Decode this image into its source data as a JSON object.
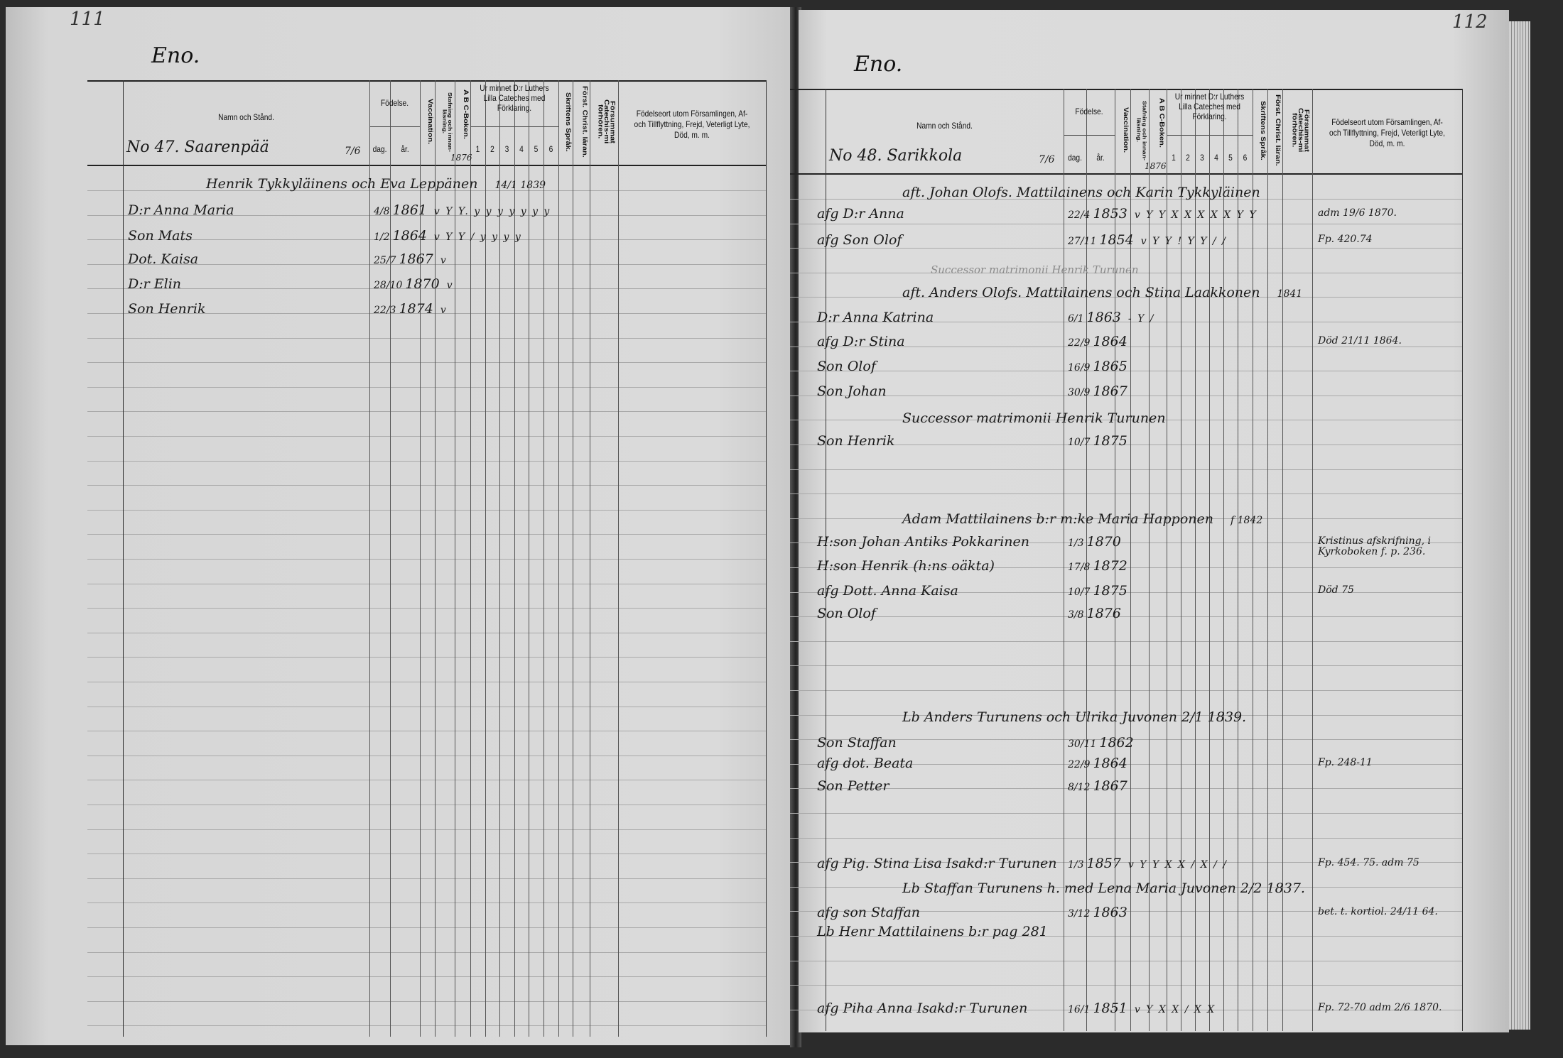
{
  "header": {
    "namn": "Namn och Stånd.",
    "fodelse": "Födelse.",
    "dag": "dag.",
    "ar": "år.",
    "vaccination": "Vaccination.",
    "stavning": "Stafning och innan-läsning.",
    "abc": "A B C-Boken.",
    "catechism": "Ur minnet D:r Luthers Lilla Cateches med Förklaring.",
    "catechism_cols": [
      "1",
      "2",
      "3",
      "4",
      "5",
      "6"
    ],
    "skriftens": "Skriftens Språk.",
    "forst": "Först. Christ. läran.",
    "forsummat": "Försummat Catechis-mi förhören.",
    "fodelseort": "Födelseort utom Församlingen, Af- och Tillflyttning, Frejd, Veterligt Lyte, Död, m. m."
  },
  "left_page": {
    "page_number": "111",
    "parish": "Eno.",
    "farm": "No 47. Saarenpää",
    "farm_mark": "7/6",
    "abc_mark": "1876",
    "entries": [
      {
        "name": "Henrik Tykkyläinens och Eva Leppänen",
        "day": "",
        "year": "",
        "marks": "",
        "note": "14/1 1839",
        "kind": "head"
      },
      {
        "name": "D:r Anna Maria",
        "day": "4/8",
        "year": "1861",
        "marks": "v Y Y.   y y y y y y y",
        "note": ""
      },
      {
        "name": "Son Mats",
        "day": "1/2",
        "year": "1864",
        "marks": "v Y Y / y y y y",
        "note": ""
      },
      {
        "name": "Dot. Kaisa",
        "day": "25/7",
        "year": "1867",
        "marks": "v",
        "note": ""
      },
      {
        "name": "D:r Elin",
        "day": "28/10",
        "year": "1870",
        "marks": "v",
        "note": ""
      },
      {
        "name": "Son Henrik",
        "day": "22/3",
        "year": "1874",
        "marks": "v",
        "note": ""
      }
    ]
  },
  "right_page": {
    "page_number": "112",
    "parish": "Eno.",
    "farm": "No 48. Sarikkola",
    "farm_mark": "7/6",
    "abc_mark": "1876",
    "entries": [
      {
        "name": "aft. Johan Olofs. Mattilainens och Karin Tykkyläinen",
        "day": "",
        "year": "",
        "marks": "",
        "note": "",
        "kind": "head"
      },
      {
        "name": "afg D:r Anna",
        "day": "22/4",
        "year": "1853",
        "marks": "v Y Y X X X X X Y Y",
        "note": "adm 19/6 1870."
      },
      {
        "name": "afg Son Olof",
        "day": "27/11",
        "year": "1854",
        "marks": "v Y Y ! Y Y / /",
        "note": "Fp. 420.74"
      },
      {
        "name": "Successor matrimonii Henrik Turunen",
        "day": "",
        "year": "",
        "marks": "",
        "note": "",
        "kind": "faint"
      },
      {
        "name": "aft. Anders Olofs. Mattilainens och Stina Laakkonen",
        "day": "",
        "year": "",
        "marks": "",
        "note": "1841",
        "kind": "head"
      },
      {
        "name": "D:r Anna Katrina",
        "day": "6/1",
        "year": "1863",
        "marks": "- Y /",
        "note": ""
      },
      {
        "name": "afg D:r Stina",
        "day": "22/9",
        "year": "1864",
        "marks": "",
        "note": "Död 21/11 1864."
      },
      {
        "name": "Son Olof",
        "day": "16/9",
        "year": "1865",
        "marks": "",
        "note": ""
      },
      {
        "name": "Son Johan",
        "day": "30/9",
        "year": "1867",
        "marks": "",
        "note": ""
      },
      {
        "name": "Successor matrimonii Henrik Turunen",
        "day": "",
        "year": "",
        "marks": "",
        "note": "",
        "kind": "head"
      },
      {
        "name": "Son Henrik",
        "day": "10/7",
        "year": "1875",
        "marks": "",
        "note": ""
      },
      {
        "name": "Adam Mattilainens b:r m:ke Maria Happonen",
        "day": "",
        "year": "",
        "marks": "",
        "note": "f 1842",
        "kind": "head"
      },
      {
        "name": "H:son Johan Antiks Pokkarinen",
        "day": "1/3",
        "year": "1870",
        "marks": "",
        "note": "Kristinus afskrifning, i Kyrkoboken f. p. 236."
      },
      {
        "name": "H:son Henrik (h:ns oäkta)",
        "day": "17/8",
        "year": "1872",
        "marks": "",
        "note": ""
      },
      {
        "name": "afg Dott. Anna Kaisa",
        "day": "10/7",
        "year": "1875",
        "marks": "",
        "note": "Död 75"
      },
      {
        "name": "Son Olof",
        "day": "3/8",
        "year": "1876",
        "marks": "",
        "note": ""
      },
      {
        "name": "Lb Anders Turunens och Ulrika Juvonen 2/1 1839.",
        "day": "",
        "year": "",
        "marks": "",
        "note": "",
        "kind": "head"
      },
      {
        "name": "Son Staffan",
        "day": "30/11",
        "year": "1862",
        "marks": "",
        "note": ""
      },
      {
        "name": "afg dot. Beata",
        "day": "22/9",
        "year": "1864",
        "marks": "",
        "note": "Fp. 248-11"
      },
      {
        "name": "Son Petter",
        "day": "8/12",
        "year": "1867",
        "marks": "",
        "note": ""
      },
      {
        "name": "afg Pig. Stina Lisa Isakd:r Turunen",
        "day": "1/3",
        "year": "1857",
        "marks": "v Y Y X X / X / /",
        "note": "Fp. 454. 75. adm 75"
      },
      {
        "name": "Lb Staffan Turunens h. med Lena Maria Juvonen 2/2 1837.",
        "day": "",
        "year": "",
        "marks": "",
        "note": "",
        "kind": "head"
      },
      {
        "name": "afg son Staffan",
        "day": "3/12",
        "year": "1863",
        "marks": "",
        "note": "bet. t. kortiol. 24/11 64."
      },
      {
        "name": "Lb Henr Mattilainens b:r pag 281",
        "day": "",
        "year": "",
        "marks": "",
        "note": ""
      },
      {
        "name": "afg Piha Anna Isakd:r Turunen",
        "day": "16/1",
        "year": "1851",
        "marks": "v Y X X / X X",
        "note": "Fp. 72-70 adm 2/6 1870."
      }
    ]
  }
}
